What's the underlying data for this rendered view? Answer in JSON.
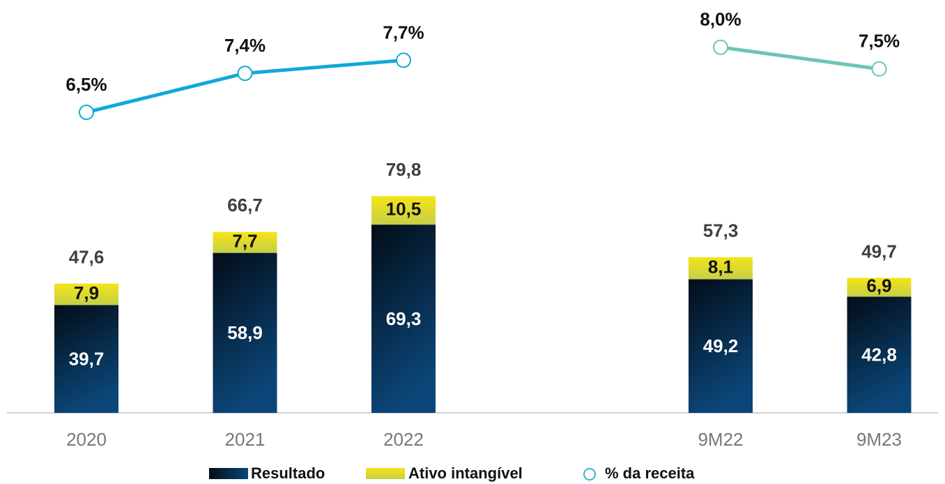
{
  "chart_data": {
    "type": "bar",
    "stacked": true,
    "categories": [
      "2020",
      "2021",
      "2022",
      null,
      "9M22",
      "9M23"
    ],
    "ylim": [
      0,
      152
    ],
    "y2lim": [
      -0.43,
      9.09
    ],
    "series": [
      {
        "name": "Resultado",
        "type": "bar",
        "color": "#0a3a66",
        "values": [
          39.7,
          58.9,
          69.3,
          null,
          49.2,
          42.8
        ],
        "value_labels": [
          "39,7",
          "58,9",
          "69,3",
          null,
          "49,2",
          "42,8"
        ]
      },
      {
        "name": "Ativo intangível",
        "type": "bar",
        "color": "#e8dc1c",
        "values": [
          7.9,
          7.7,
          10.5,
          null,
          8.1,
          6.9
        ],
        "value_labels": [
          "7,9",
          "7,7",
          "10,5",
          null,
          "8,1",
          "6,9"
        ]
      },
      {
        "name": "% da receita",
        "type": "line",
        "axis": "y2",
        "color": "#12a8d8",
        "piece_colors": [
          "#12a8d8",
          "#6dc5b5"
        ],
        "values": [
          6.5,
          7.4,
          7.7,
          null,
          8.0,
          7.5
        ],
        "value_labels": [
          "6,5%",
          "7,4%",
          "7,7%",
          null,
          "8,0%",
          "7,5%"
        ]
      }
    ],
    "totals": [
      47.6,
      66.7,
      79.8,
      null,
      57.3,
      49.7
    ],
    "total_labels": [
      "47,6",
      "66,7",
      "79,8",
      null,
      "57,3",
      "49,7"
    ]
  }
}
